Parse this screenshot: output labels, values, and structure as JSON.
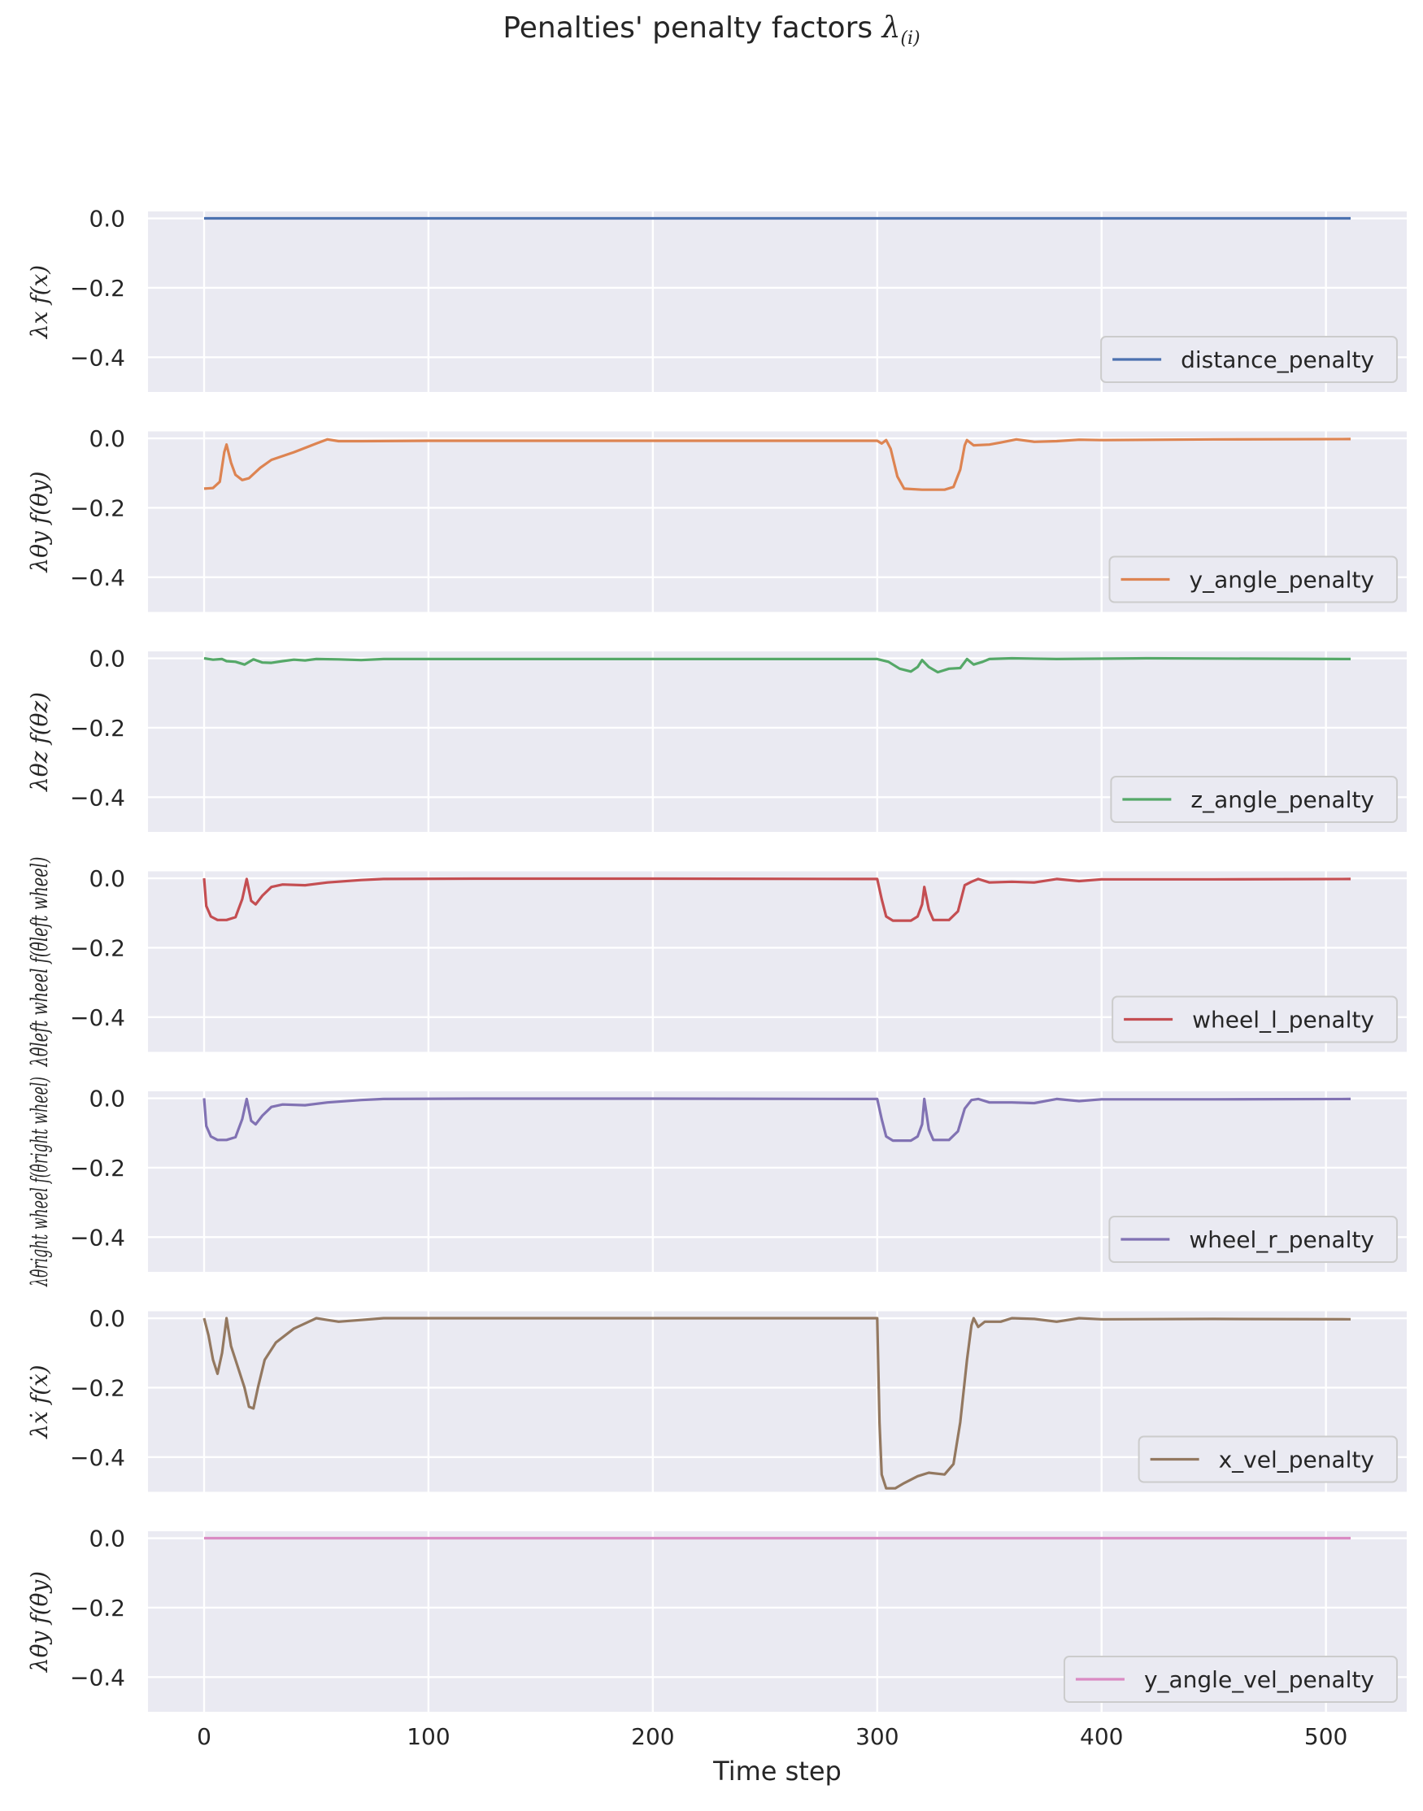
{
  "figure": {
    "title": "Penalties' penalty factors",
    "title_symbol": "λ",
    "title_subscript": "(i)"
  },
  "chart_data": [
    {
      "type": "line",
      "ylabel": "λx f(x)",
      "series": [
        {
          "name": "distance_penalty",
          "color": "#4c72b0",
          "points": [
            [
              0,
              0
            ],
            [
              511,
              0
            ]
          ]
        }
      ],
      "ylim": [
        -0.5,
        0.02
      ],
      "legend_position": "lower-right",
      "grid": true
    },
    {
      "type": "line",
      "ylabel": "λθy f(θy)",
      "series": [
        {
          "name": "y_angle_penalty",
          "color": "#dd8452",
          "points": [
            [
              0,
              -0.145
            ],
            [
              4,
              -0.143
            ],
            [
              7,
              -0.125
            ],
            [
              9,
              -0.04
            ],
            [
              10,
              -0.018
            ],
            [
              12,
              -0.07
            ],
            [
              14,
              -0.105
            ],
            [
              17,
              -0.12
            ],
            [
              20,
              -0.115
            ],
            [
              25,
              -0.085
            ],
            [
              30,
              -0.062
            ],
            [
              40,
              -0.04
            ],
            [
              50,
              -0.015
            ],
            [
              55,
              -0.003
            ],
            [
              60,
              -0.008
            ],
            [
              70,
              -0.008
            ],
            [
              100,
              -0.007
            ],
            [
              200,
              -0.007
            ],
            [
              290,
              -0.007
            ],
            [
              300,
              -0.007
            ],
            [
              302,
              -0.015
            ],
            [
              304,
              -0.005
            ],
            [
              306,
              -0.03
            ],
            [
              309,
              -0.11
            ],
            [
              312,
              -0.145
            ],
            [
              320,
              -0.148
            ],
            [
              330,
              -0.148
            ],
            [
              334,
              -0.14
            ],
            [
              337,
              -0.09
            ],
            [
              339,
              -0.02
            ],
            [
              340,
              -0.005
            ],
            [
              343,
              -0.02
            ],
            [
              350,
              -0.018
            ],
            [
              355,
              -0.012
            ],
            [
              362,
              -0.003
            ],
            [
              370,
              -0.01
            ],
            [
              380,
              -0.008
            ],
            [
              390,
              -0.004
            ],
            [
              400,
              -0.005
            ],
            [
              450,
              -0.003
            ],
            [
              511,
              -0.002
            ]
          ]
        }
      ],
      "ylim": [
        -0.5,
        0.02
      ],
      "legend_position": "lower-right",
      "grid": true
    },
    {
      "type": "line",
      "ylabel": "λθz f(θz)",
      "series": [
        {
          "name": "z_angle_penalty",
          "color": "#55a868",
          "points": [
            [
              0,
              0
            ],
            [
              4,
              -0.004
            ],
            [
              8,
              -0.002
            ],
            [
              10,
              -0.008
            ],
            [
              14,
              -0.01
            ],
            [
              18,
              -0.018
            ],
            [
              22,
              -0.003
            ],
            [
              26,
              -0.012
            ],
            [
              30,
              -0.013
            ],
            [
              35,
              -0.008
            ],
            [
              40,
              -0.004
            ],
            [
              45,
              -0.006
            ],
            [
              50,
              -0.002
            ],
            [
              60,
              -0.003
            ],
            [
              70,
              -0.005
            ],
            [
              80,
              -0.002
            ],
            [
              120,
              -0.002
            ],
            [
              200,
              -0.002
            ],
            [
              295,
              -0.002
            ],
            [
              300,
              -0.002
            ],
            [
              305,
              -0.01
            ],
            [
              310,
              -0.03
            ],
            [
              315,
              -0.038
            ],
            [
              318,
              -0.025
            ],
            [
              320,
              -0.005
            ],
            [
              323,
              -0.025
            ],
            [
              327,
              -0.04
            ],
            [
              332,
              -0.03
            ],
            [
              337,
              -0.028
            ],
            [
              340,
              -0.002
            ],
            [
              343,
              -0.018
            ],
            [
              347,
              -0.01
            ],
            [
              350,
              -0.002
            ],
            [
              360,
              0
            ],
            [
              380,
              -0.002
            ],
            [
              420,
              0
            ],
            [
              511,
              -0.002
            ]
          ]
        }
      ],
      "ylim": [
        -0.5,
        0.02
      ],
      "legend_position": "lower-right",
      "grid": true
    },
    {
      "type": "line",
      "ylabel": "λθ̇left wheel f(θ̇left wheel)",
      "series": [
        {
          "name": "wheel_l_penalty",
          "color": "#c44e52",
          "points": [
            [
              0,
              0
            ],
            [
              1,
              -0.08
            ],
            [
              3,
              -0.11
            ],
            [
              6,
              -0.12
            ],
            [
              10,
              -0.12
            ],
            [
              14,
              -0.112
            ],
            [
              17,
              -0.06
            ],
            [
              19,
              -0.002
            ],
            [
              21,
              -0.065
            ],
            [
              23,
              -0.075
            ],
            [
              26,
              -0.05
            ],
            [
              30,
              -0.025
            ],
            [
              35,
              -0.018
            ],
            [
              45,
              -0.02
            ],
            [
              55,
              -0.012
            ],
            [
              70,
              -0.005
            ],
            [
              80,
              -0.002
            ],
            [
              120,
              -0.001
            ],
            [
              200,
              -0.001
            ],
            [
              295,
              -0.002
            ],
            [
              300,
              -0.002
            ],
            [
              302,
              -0.06
            ],
            [
              304,
              -0.11
            ],
            [
              307,
              -0.122
            ],
            [
              315,
              -0.122
            ],
            [
              318,
              -0.11
            ],
            [
              320,
              -0.075
            ],
            [
              321,
              -0.025
            ],
            [
              323,
              -0.09
            ],
            [
              325,
              -0.12
            ],
            [
              332,
              -0.12
            ],
            [
              336,
              -0.095
            ],
            [
              339,
              -0.02
            ],
            [
              342,
              -0.01
            ],
            [
              345,
              -0.002
            ],
            [
              350,
              -0.012
            ],
            [
              360,
              -0.01
            ],
            [
              370,
              -0.012
            ],
            [
              380,
              -0.002
            ],
            [
              390,
              -0.008
            ],
            [
              400,
              -0.003
            ],
            [
              450,
              -0.003
            ],
            [
              511,
              -0.002
            ]
          ]
        }
      ],
      "ylim": [
        -0.5,
        0.02
      ],
      "legend_position": "lower-right",
      "grid": true
    },
    {
      "type": "line",
      "ylabel": "λθ̇right wheel f(θ̇right wheel)",
      "series": [
        {
          "name": "wheel_r_penalty",
          "color": "#8172b3",
          "points": [
            [
              0,
              0
            ],
            [
              1,
              -0.08
            ],
            [
              3,
              -0.11
            ],
            [
              6,
              -0.12
            ],
            [
              10,
              -0.12
            ],
            [
              14,
              -0.112
            ],
            [
              17,
              -0.06
            ],
            [
              19,
              -0.002
            ],
            [
              21,
              -0.065
            ],
            [
              23,
              -0.075
            ],
            [
              26,
              -0.05
            ],
            [
              30,
              -0.025
            ],
            [
              35,
              -0.018
            ],
            [
              45,
              -0.02
            ],
            [
              55,
              -0.012
            ],
            [
              70,
              -0.005
            ],
            [
              80,
              -0.002
            ],
            [
              120,
              -0.001
            ],
            [
              200,
              -0.001
            ],
            [
              295,
              -0.002
            ],
            [
              300,
              -0.002
            ],
            [
              302,
              -0.06
            ],
            [
              304,
              -0.11
            ],
            [
              307,
              -0.122
            ],
            [
              315,
              -0.122
            ],
            [
              318,
              -0.11
            ],
            [
              320,
              -0.075
            ],
            [
              321,
              -0.002
            ],
            [
              323,
              -0.09
            ],
            [
              325,
              -0.12
            ],
            [
              332,
              -0.12
            ],
            [
              336,
              -0.095
            ],
            [
              339,
              -0.03
            ],
            [
              342,
              -0.005
            ],
            [
              345,
              -0.002
            ],
            [
              350,
              -0.012
            ],
            [
              360,
              -0.012
            ],
            [
              370,
              -0.014
            ],
            [
              380,
              -0.002
            ],
            [
              390,
              -0.008
            ],
            [
              400,
              -0.003
            ],
            [
              450,
              -0.003
            ],
            [
              511,
              -0.002
            ]
          ]
        }
      ],
      "ylim": [
        -0.5,
        0.02
      ],
      "legend_position": "lower-right",
      "grid": true
    },
    {
      "type": "line",
      "ylabel": "λẋ f(ẋ)",
      "series": [
        {
          "name": "x_vel_penalty",
          "color": "#937860",
          "points": [
            [
              0,
              0
            ],
            [
              2,
              -0.05
            ],
            [
              4,
              -0.12
            ],
            [
              6,
              -0.16
            ],
            [
              8,
              -0.1
            ],
            [
              10,
              0
            ],
            [
              12,
              -0.08
            ],
            [
              15,
              -0.14
            ],
            [
              18,
              -0.2
            ],
            [
              20,
              -0.255
            ],
            [
              22,
              -0.26
            ],
            [
              24,
              -0.2
            ],
            [
              27,
              -0.12
            ],
            [
              32,
              -0.07
            ],
            [
              40,
              -0.03
            ],
            [
              45,
              -0.015
            ],
            [
              50,
              0
            ],
            [
              55,
              -0.005
            ],
            [
              60,
              -0.01
            ],
            [
              70,
              -0.005
            ],
            [
              80,
              0
            ],
            [
              100,
              0
            ],
            [
              200,
              0
            ],
            [
              299,
              0
            ],
            [
              300,
              0
            ],
            [
              301,
              -0.3
            ],
            [
              302,
              -0.45
            ],
            [
              304,
              -0.49
            ],
            [
              308,
              -0.49
            ],
            [
              312,
              -0.475
            ],
            [
              318,
              -0.455
            ],
            [
              323,
              -0.445
            ],
            [
              330,
              -0.45
            ],
            [
              334,
              -0.42
            ],
            [
              337,
              -0.3
            ],
            [
              340,
              -0.12
            ],
            [
              342,
              -0.02
            ],
            [
              343,
              0
            ],
            [
              345,
              -0.025
            ],
            [
              348,
              -0.01
            ],
            [
              355,
              -0.01
            ],
            [
              360,
              0
            ],
            [
              370,
              -0.002
            ],
            [
              380,
              -0.01
            ],
            [
              390,
              0
            ],
            [
              400,
              -0.003
            ],
            [
              450,
              -0.002
            ],
            [
              511,
              -0.003
            ]
          ]
        }
      ],
      "ylim": [
        -0.5,
        0.02
      ],
      "legend_position": "lower-right",
      "grid": true
    },
    {
      "type": "line",
      "ylabel": "λθ̇y f(θ̇y)",
      "series": [
        {
          "name": "y_angle_vel_penalty",
          "color": "#da8bc3",
          "points": [
            [
              0,
              0
            ],
            [
              511,
              0
            ]
          ]
        }
      ],
      "ylim": [
        -0.5,
        0.02
      ],
      "legend_position": "lower-right",
      "grid": true
    }
  ],
  "shared": {
    "xlabel": "Time step",
    "xlim": [
      -25,
      536
    ],
    "xticks": [
      0,
      100,
      200,
      300,
      400,
      500
    ],
    "yticks": [
      0.0,
      -0.2,
      -0.4
    ],
    "ytick_labels": [
      "0.0",
      "−0.2",
      "−0.4"
    ]
  }
}
